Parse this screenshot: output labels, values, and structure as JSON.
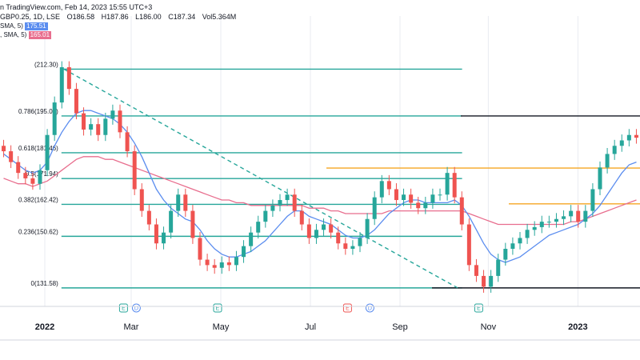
{
  "header": {
    "source": "n TradingView.com, Feb 14, 2023 15:55 UTC+3",
    "quote": "GBP0.25, 1D, LSE",
    "open": "O186.58",
    "high": "H187.86",
    "low": "L186.00",
    "close": "C187.34",
    "volume": "Vol5.364M"
  },
  "indicators": [
    {
      "label": "SMA, 5)",
      "value": "175.51",
      "color": "#5b8def"
    },
    {
      "label": ", SMA, 5)",
      "value": "165.01",
      "color": "#e86e8e"
    }
  ],
  "chart_data": {
    "type": "candlestick",
    "title": "",
    "y_unit": "GBX",
    "ylim": [
      128,
      226
    ],
    "x_labels": [
      {
        "label": "2022",
        "bold": true,
        "t": 0.07
      },
      {
        "label": "Mar",
        "bold": false,
        "t": 0.205
      },
      {
        "label": "May",
        "bold": false,
        "t": 0.345
      },
      {
        "label": "Jul",
        "bold": false,
        "t": 0.485
      },
      {
        "label": "Sep",
        "bold": false,
        "t": 0.625
      },
      {
        "label": "Nov",
        "bold": false,
        "t": 0.763
      },
      {
        "label": "2023",
        "bold": true,
        "t": 0.903
      }
    ],
    "fib_levels": [
      {
        "ratio": "1",
        "price": 212.3,
        "label": "(212.30)"
      },
      {
        "ratio": "0.786",
        "price": 195.02,
        "label": "0.786(195.02)"
      },
      {
        "ratio": "0.618",
        "price": 181.46,
        "label": "0.618(181.46)"
      },
      {
        "ratio": "0.5",
        "price": 171.94,
        "label": "0.5(171.94)"
      },
      {
        "ratio": "0.382",
        "price": 162.42,
        "label": "0.382(162.42)"
      },
      {
        "ratio": "0.236",
        "price": 150.62,
        "label": "0.236(150.62)"
      },
      {
        "ratio": "0",
        "price": 131.58,
        "label": "0(131.58)"
      }
    ],
    "horizontal_lines": [
      {
        "price": 195.02,
        "color": "#131722",
        "from": 0.72,
        "to": 1.0
      },
      {
        "price": 175.8,
        "color": "#f5a623",
        "from": 0.51,
        "to": 1.0
      },
      {
        "price": 162.6,
        "color": "#f5a623",
        "from": 0.795,
        "to": 1.0
      },
      {
        "price": 131.58,
        "color": "#131722",
        "from": 0.675,
        "to": 1.0
      }
    ],
    "trendline": {
      "from": {
        "t": 0.1,
        "price": 212.3
      },
      "to": {
        "t": 0.715,
        "price": 131.6
      },
      "color": "#26a69a",
      "style": "dashed"
    },
    "close_series": [
      182,
      178,
      174,
      172,
      170,
      175,
      188,
      200,
      213,
      205,
      196,
      190,
      192,
      188,
      194,
      197,
      189,
      182,
      168,
      160,
      155,
      148,
      152,
      160,
      166,
      160,
      150,
      142,
      140,
      139,
      141,
      140,
      143,
      147,
      152,
      156,
      160,
      162,
      164,
      166,
      160,
      155,
      150,
      153,
      155,
      152,
      148,
      146,
      147,
      150,
      157,
      165,
      171,
      168,
      164,
      166,
      163,
      161,
      163,
      166,
      166,
      174,
      165,
      155,
      140,
      136,
      132,
      136,
      142,
      146,
      148,
      150,
      153,
      154,
      156,
      156,
      157,
      158,
      160,
      156,
      160,
      168,
      176,
      181,
      184,
      186,
      188,
      187
    ],
    "sma_fast": [
      181,
      179,
      177,
      175,
      174,
      175,
      178,
      184,
      189,
      193,
      196,
      197,
      197,
      196,
      195,
      194,
      192,
      189,
      185,
      180,
      174,
      168,
      164,
      161,
      159,
      157,
      156,
      153,
      149,
      146,
      144,
      143,
      143,
      144,
      145,
      147,
      149,
      152,
      155,
      158,
      160,
      160,
      158,
      157,
      156,
      155,
      153,
      151,
      150,
      150,
      151,
      153,
      156,
      159,
      161,
      163,
      164,
      164,
      163,
      163,
      163,
      163,
      164,
      162,
      158,
      153,
      148,
      144,
      142,
      141,
      142,
      143,
      145,
      147,
      149,
      151,
      152,
      153,
      154,
      155,
      157,
      159,
      162,
      166,
      170,
      174,
      177,
      178
    ],
    "sma_slow": [
      172,
      171,
      170,
      170,
      169,
      170,
      171,
      173,
      175,
      177,
      179,
      180,
      180,
      180,
      179,
      179,
      178,
      177,
      176,
      175,
      174,
      173,
      172,
      171,
      170,
      169,
      168,
      167,
      166,
      165,
      164,
      164,
      163,
      163,
      162,
      162,
      162,
      162,
      162,
      162,
      162,
      162,
      161,
      161,
      161,
      160,
      160,
      159,
      159,
      159,
      159,
      159,
      159,
      160,
      160,
      160,
      160,
      160,
      160,
      160,
      160,
      160,
      160,
      160,
      159,
      158,
      157,
      156,
      155,
      155,
      155,
      155,
      155,
      155,
      155,
      155,
      155,
      155,
      156,
      156,
      157,
      158,
      159,
      160,
      161,
      162,
      163,
      164
    ],
    "events": [
      {
        "t": 0.193,
        "kind": "E"
      },
      {
        "t": 0.213,
        "kind": "D"
      },
      {
        "t": 0.34,
        "kind": "E"
      },
      {
        "t": 0.543,
        "kind": "E"
      },
      {
        "t": 0.578,
        "kind": "D"
      },
      {
        "t": 0.748,
        "kind": "E"
      }
    ]
  },
  "colors": {
    "up": "#26a69a",
    "down": "#ef5350",
    "fib": "#26a69a",
    "sma_fast": "#5b8def",
    "sma_slow": "#e86e8e",
    "grid": "#e9ebf0",
    "axis": "#131722"
  }
}
